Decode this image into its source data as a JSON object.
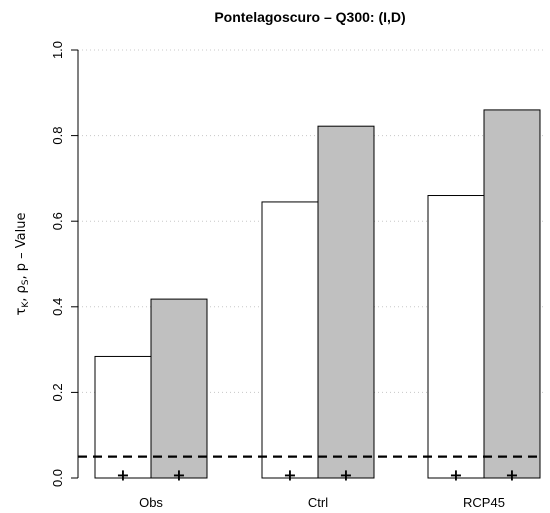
{
  "chart_data": {
    "type": "bar",
    "title": "Pontelagoscuro – Q300: (I,D)",
    "ylabel": {
      "tau": "τ",
      "tau_sub": "K",
      "sep1": ", ",
      "rho": "ρ",
      "rho_sub": "S",
      "rest": ", p – Value"
    },
    "xlabel": "",
    "categories": [
      "Obs",
      "Ctrl",
      "RCP45"
    ],
    "series": [
      {
        "values": [
          0.284,
          0.645,
          0.66
        ],
        "color": "#ffffff"
      },
      {
        "values": [
          0.418,
          0.822,
          0.86
        ],
        "color": "#c0c0c0"
      }
    ],
    "p_values": [
      0.003,
      0.003,
      0.003
    ],
    "p_marker": "+",
    "reference_line": 0.05,
    "ylim": [
      0,
      1
    ],
    "yticks": [
      "0.0",
      "0.2",
      "0.4",
      "0.6",
      "0.8",
      "1.0"
    ],
    "ytick_values": [
      0,
      0.2,
      0.4,
      0.6,
      0.8,
      1.0
    ],
    "grid": true
  }
}
